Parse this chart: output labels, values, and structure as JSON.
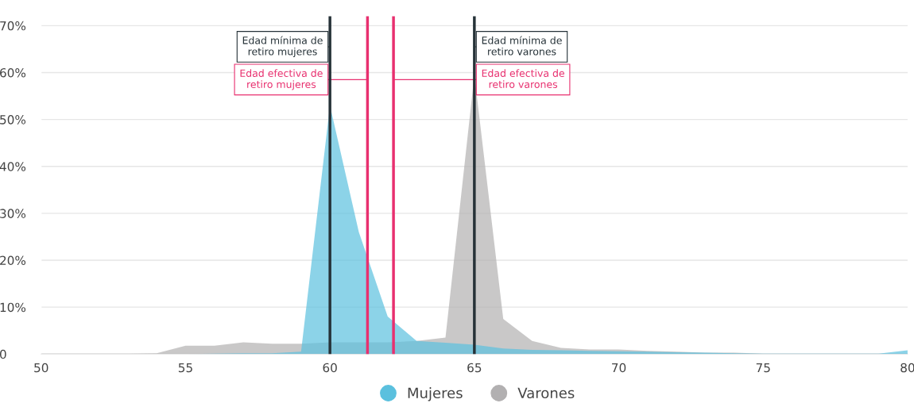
{
  "chart_data": {
    "type": "area",
    "x": [
      50,
      51,
      52,
      53,
      54,
      55,
      56,
      57,
      58,
      59,
      60,
      61,
      62,
      63,
      64,
      65,
      66,
      67,
      68,
      69,
      70,
      71,
      72,
      73,
      74,
      75,
      76,
      77,
      78,
      79,
      80
    ],
    "series": [
      {
        "name": "Mujeres",
        "color": "#5bc0de",
        "values": [
          0,
          0,
          0,
          0,
          0,
          0,
          0.1,
          0.2,
          0.2,
          0.5,
          53,
          26,
          8,
          2.8,
          2.4,
          2,
          1.2,
          0.9,
          0.8,
          0.7,
          0.6,
          0.5,
          0.4,
          0.3,
          0.2,
          0.1,
          0.1,
          0.1,
          0.1,
          0.1,
          0.8
        ]
      },
      {
        "name": "Varones",
        "color": "#b2b0b1",
        "values": [
          0.1,
          0.1,
          0.1,
          0.1,
          0.2,
          1.8,
          1.8,
          2.5,
          2.2,
          2.2,
          2.5,
          2.5,
          2.5,
          2.8,
          3.5,
          59.5,
          7.5,
          2.8,
          1.3,
          1.0,
          1.0,
          0.7,
          0.5,
          0.3,
          0.3,
          0.1,
          0.1,
          0.1,
          0.1,
          0.1,
          0.1
        ]
      }
    ],
    "xlim": [
      50,
      80
    ],
    "xticks": [
      50,
      55,
      60,
      65,
      70,
      75,
      80
    ],
    "ylim": [
      0,
      72
    ],
    "yticks": [
      {
        "value": 0,
        "label": "0"
      },
      {
        "value": 10,
        "label": "10%"
      },
      {
        "value": 20,
        "label": "20%"
      },
      {
        "value": 30,
        "label": "30%"
      },
      {
        "value": 40,
        "label": "40%"
      },
      {
        "value": 50,
        "label": "50%"
      },
      {
        "value": 60,
        "label": "60%"
      },
      {
        "value": 70,
        "label": "70%"
      }
    ],
    "grid": "y",
    "legend": "bottom",
    "ref_lines": [
      {
        "axis": "x",
        "value": 60,
        "label": "Edad mínima de\nretiro mujeres",
        "color": "#263238"
      },
      {
        "axis": "x",
        "value": 65,
        "label": "Edad mínima de\nretiro varones",
        "color": "#263238"
      },
      {
        "axis": "x",
        "value": 61.3,
        "label": "Edad efectiva de\nretiro mujeres",
        "color": "#e8306f"
      },
      {
        "axis": "x",
        "value": 62.2,
        "label": "Edad efectiva de\nretiro varones",
        "color": "#e8306f"
      }
    ]
  }
}
